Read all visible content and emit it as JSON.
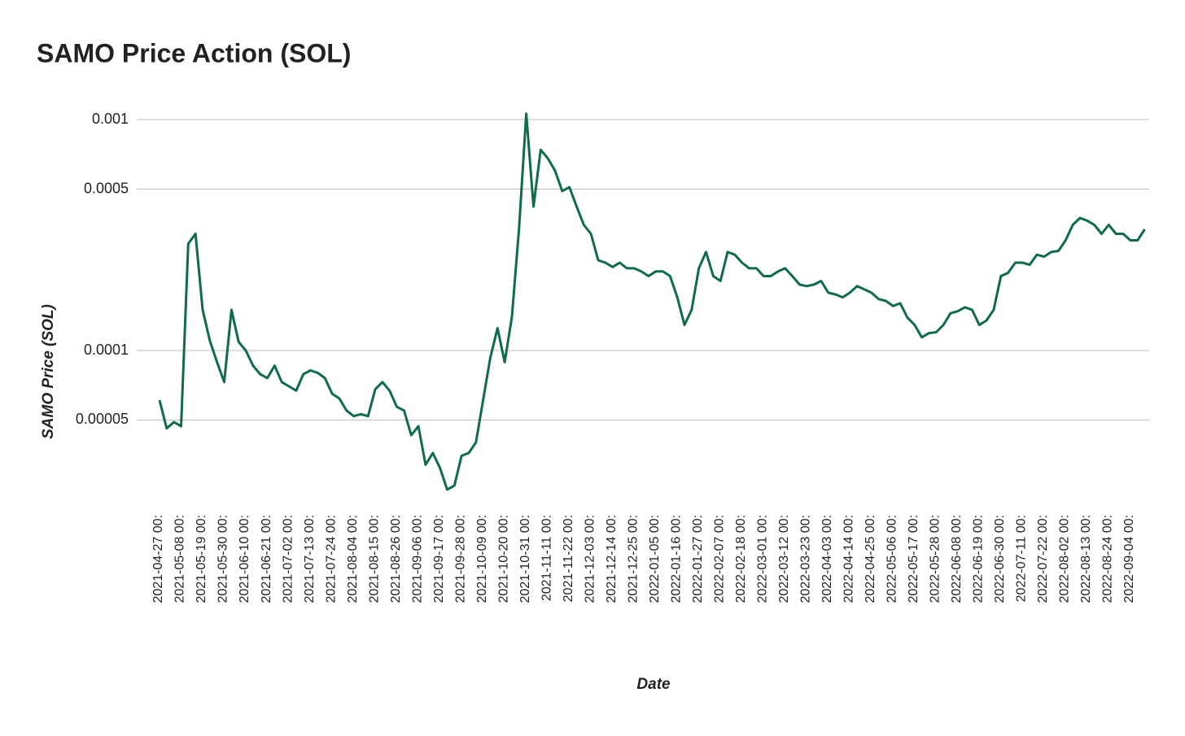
{
  "chart_data": {
    "type": "line",
    "title": "SAMO Price Action (SOL)",
    "x_label": "Date",
    "y_label": "SAMO Price (SOL)",
    "log_scale": true,
    "grid": true,
    "color": "#0e6b4b",
    "ylim": [
      2e-05,
      0.00125
    ],
    "yticks": [
      5e-05,
      0.0001,
      0.0005,
      0.001
    ],
    "categories": [
      "2021-04-27 00:",
      null,
      null,
      "2021-05-08 00:",
      null,
      null,
      "2021-05-19 00:",
      null,
      null,
      "2021-05-30 00:",
      null,
      null,
      "2021-06-10 00:",
      null,
      null,
      "2021-06-21 00:",
      null,
      null,
      "2021-07-02 00:",
      null,
      null,
      "2021-07-13 00:",
      null,
      null,
      "2021-07-24 00:",
      null,
      null,
      "2021-08-04 00:",
      null,
      null,
      "2021-08-15 00:",
      null,
      null,
      "2021-08-26 00:",
      null,
      null,
      "2021-09-06 00:",
      null,
      null,
      "2021-09-17 00:",
      null,
      null,
      "2021-09-28 00:",
      null,
      null,
      "2021-10-09 00:",
      null,
      null,
      "2021-10-20 00:",
      null,
      null,
      "2021-10-31 00:",
      null,
      null,
      "2021-11-11 00:",
      null,
      null,
      "2021-11-22 00:",
      null,
      null,
      "2021-12-03 00:",
      null,
      null,
      "2021-12-14 00:",
      null,
      null,
      "2021-12-25 00:",
      null,
      null,
      "2022-01-05 00:",
      null,
      null,
      "2022-01-16 00:",
      null,
      null,
      "2022-01-27 00:",
      null,
      null,
      "2022-02-07 00:",
      null,
      null,
      "2022-02-18 00:",
      null,
      null,
      "2022-03-01 00:",
      null,
      null,
      "2022-03-12 00:",
      null,
      null,
      "2022-03-23 00:",
      null,
      null,
      "2022-04-03 00:",
      null,
      null,
      "2022-04-14 00:",
      null,
      null,
      "2022-04-25 00:",
      null,
      null,
      "2022-05-06 00:",
      null,
      null,
      "2022-05-17 00:",
      null,
      null,
      "2022-05-28 00:",
      null,
      null,
      "2022-06-08 00:",
      null,
      null,
      "2022-06-19 00:",
      null,
      null,
      "2022-06-30 00:",
      null,
      null,
      "2022-07-11 00:",
      null,
      null,
      "2022-07-22 00:",
      null,
      null,
      "2022-08-02 00:",
      null,
      null,
      "2022-08-13 00:",
      null,
      null,
      "2022-08-24 00:",
      null,
      null,
      "2022-09-04 00:",
      null,
      null
    ],
    "values": [
      6.1e-05,
      4.6e-05,
      4.9e-05,
      4.7e-05,
      0.00029,
      0.00032,
      0.00015,
      0.00011,
      8.9e-05,
      7.3e-05,
      0.00015,
      0.000109,
      0.0001,
      8.6e-05,
      7.9e-05,
      7.6e-05,
      8.6e-05,
      7.3e-05,
      7e-05,
      6.7e-05,
      7.9e-05,
      8.2e-05,
      8e-05,
      7.6e-05,
      6.5e-05,
      6.2e-05,
      5.5e-05,
      5.2e-05,
      5.3e-05,
      5.2e-05,
      6.8e-05,
      7.3e-05,
      6.7e-05,
      5.7e-05,
      5.5e-05,
      4.3e-05,
      4.7e-05,
      3.2e-05,
      3.6e-05,
      3.1e-05,
      2.5e-05,
      2.6e-05,
      3.5e-05,
      3.6e-05,
      4e-05,
      6.1e-05,
      9.3e-05,
      0.000125,
      8.9e-05,
      0.00014,
      0.00034,
      0.00106,
      0.00042,
      0.00074,
      0.00068,
      0.0006,
      0.00049,
      0.00051,
      0.00042,
      0.00035,
      0.00032,
      0.000246,
      0.00024,
      0.00023,
      0.00024,
      0.000227,
      0.000227,
      0.00022,
      0.00021,
      0.00022,
      0.00022,
      0.00021,
      0.00017,
      0.000129,
      0.00015,
      0.000227,
      0.000267,
      0.00021,
      0.0002,
      0.000267,
      0.00026,
      0.00024,
      0.000227,
      0.000227,
      0.00021,
      0.00021,
      0.00022,
      0.000227,
      0.00021,
      0.000193,
      0.00019,
      0.000193,
      0.0002,
      0.000178,
      0.000175,
      0.00017,
      0.000178,
      0.00019,
      0.000184,
      0.000178,
      0.000167,
      0.000164,
      0.000156,
      0.00016,
      0.000139,
      0.000129,
      0.000114,
      0.000119,
      0.00012,
      0.000129,
      0.000145,
      0.000148,
      0.000154,
      0.00015,
      0.000129,
      0.000135,
      0.00015,
      0.00021,
      0.000217,
      0.00024,
      0.00024,
      0.000235,
      0.00026,
      0.000255,
      0.000267,
      0.00027,
      0.0003,
      0.00035,
      0.000375,
      0.000365,
      0.00035,
      0.00032,
      0.00035,
      0.00032,
      0.00032,
      0.0003,
      0.0003,
      0.000335
    ]
  }
}
